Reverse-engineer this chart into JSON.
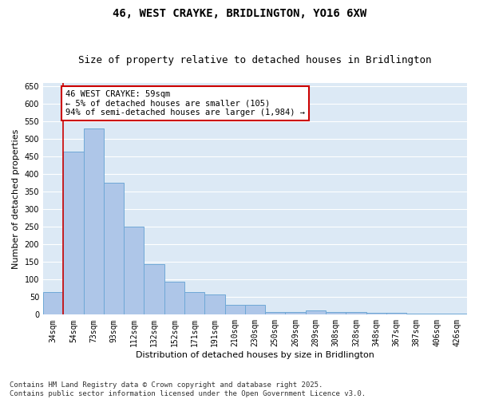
{
  "title": "46, WEST CRAYKE, BRIDLINGTON, YO16 6XW",
  "subtitle": "Size of property relative to detached houses in Bridlington",
  "xlabel": "Distribution of detached houses by size in Bridlington",
  "ylabel": "Number of detached properties",
  "categories": [
    "34sqm",
    "54sqm",
    "73sqm",
    "93sqm",
    "112sqm",
    "132sqm",
    "152sqm",
    "171sqm",
    "191sqm",
    "210sqm",
    "230sqm",
    "250sqm",
    "269sqm",
    "289sqm",
    "308sqm",
    "328sqm",
    "348sqm",
    "367sqm",
    "387sqm",
    "406sqm",
    "426sqm"
  ],
  "values": [
    65,
    465,
    530,
    375,
    250,
    143,
    95,
    65,
    57,
    28,
    27,
    7,
    7,
    12,
    7,
    7,
    5,
    5,
    3,
    3,
    2
  ],
  "bar_color": "#aec6e8",
  "bar_edge_color": "#6fa8d6",
  "bg_color": "#dce9f5",
  "grid_color": "#ffffff",
  "vline_x": 0.5,
  "vline_color": "#cc0000",
  "annotation_text": "46 WEST CRAYKE: 59sqm\n← 5% of detached houses are smaller (105)\n94% of semi-detached houses are larger (1,984) →",
  "annotation_box_color": "#cc0000",
  "ylim": [
    0,
    660
  ],
  "yticks": [
    0,
    50,
    100,
    150,
    200,
    250,
    300,
    350,
    400,
    450,
    500,
    550,
    600,
    650
  ],
  "footer": "Contains HM Land Registry data © Crown copyright and database right 2025.\nContains public sector information licensed under the Open Government Licence v3.0.",
  "title_fontsize": 10,
  "subtitle_fontsize": 9,
  "axis_label_fontsize": 8,
  "tick_fontsize": 7,
  "annotation_fontsize": 7.5
}
